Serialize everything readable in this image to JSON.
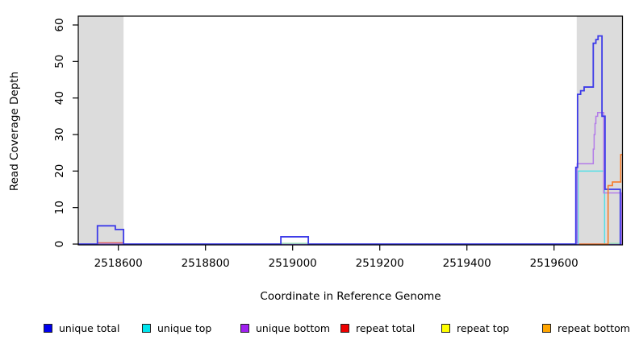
{
  "figure": {
    "background": "#ffffff"
  },
  "chart_data": {
    "type": "line",
    "subtype": "step-coverage-plot",
    "title": "",
    "xlabel": "Coordinate in Reference Genome",
    "ylabel": "Read Coverage Depth",
    "xlim": [
      2518508,
      2519757
    ],
    "ylim": [
      0,
      62.4
    ],
    "x_ticks": [
      2518600,
      2518800,
      2519000,
      2519200,
      2519400,
      2519600
    ],
    "y_ticks": [
      0,
      10,
      20,
      30,
      40,
      50,
      60
    ],
    "grid": false,
    "axis_color": "#000000",
    "shaded_regions": {
      "color": "#dcdcdc",
      "ranges": [
        [
          2518508,
          2518612
        ],
        [
          2519652,
          2519757
        ]
      ]
    },
    "series": [
      {
        "name": "zero-baseline",
        "legend": null,
        "color": "#7d63e6",
        "width": 1.4,
        "points": [
          [
            2518508,
            0
          ],
          [
            2519757,
            0
          ]
        ]
      },
      {
        "name": "repeat-total",
        "legend": "repeat total",
        "color": "#e06060",
        "width": 1.4,
        "points": [
          [
            2518552,
            0.35
          ],
          [
            2518612,
            0.35
          ]
        ]
      },
      {
        "name": "overlap-zero-mid",
        "legend": null,
        "color": "#9ce8b2",
        "width": 1.4,
        "points": [
          [
            2518973,
            0.2
          ],
          [
            2519036,
            0.2
          ]
        ]
      },
      {
        "name": "overlap-zero-right",
        "legend": null,
        "color": "#9ce8b2",
        "width": 1.4,
        "points": [
          [
            2519724,
            0.2
          ],
          [
            2519753,
            0.2
          ]
        ]
      },
      {
        "name": "unique-top",
        "legend": "unique top",
        "color": "#55dfe6",
        "width": 1.5,
        "points": [
          [
            2519655,
            0
          ],
          [
            2519655,
            20
          ],
          [
            2519716,
            20
          ],
          [
            2519716,
            0
          ]
        ]
      },
      {
        "name": "unique-bottom",
        "legend": "unique bottom",
        "color": "#b37be8",
        "width": 1.5,
        "points": [
          [
            2519653,
            0
          ],
          [
            2519653,
            22
          ],
          [
            2519690,
            26
          ],
          [
            2519692,
            30
          ],
          [
            2519694,
            33
          ],
          [
            2519696,
            35
          ],
          [
            2519700,
            36
          ],
          [
            2519714,
            14
          ],
          [
            2519755,
            0
          ],
          [
            2519757,
            0
          ]
        ]
      },
      {
        "name": "unique-total",
        "legend": "unique total",
        "color": "#3d3be8",
        "width": 1.8,
        "points": [
          [
            2518508,
            0
          ],
          [
            2518552,
            5
          ],
          [
            2518593,
            4
          ],
          [
            2518612,
            0
          ],
          [
            2518973,
            2
          ],
          [
            2519036,
            0
          ],
          [
            2519650,
            21
          ],
          [
            2519654,
            41
          ],
          [
            2519661,
            42
          ],
          [
            2519669,
            43
          ],
          [
            2519690,
            55
          ],
          [
            2519696,
            56
          ],
          [
            2519701,
            57
          ],
          [
            2519710,
            35
          ],
          [
            2519717,
            15
          ],
          [
            2519752,
            0
          ],
          [
            2519754,
            0
          ]
        ]
      },
      {
        "name": "repeat-bottom",
        "legend": "repeat bottom",
        "color": "#f57b2a",
        "width": 1.6,
        "points": [
          [
            2519658,
            0
          ],
          [
            2519724,
            16
          ],
          [
            2519734,
            17
          ],
          [
            2519753,
            24.5
          ],
          [
            2519757,
            24.5
          ]
        ]
      }
    ],
    "legend": {
      "position": "bottom",
      "items": [
        {
          "label": "unique total",
          "color": "#0000EE"
        },
        {
          "label": "unique top",
          "color": "#00E5EE"
        },
        {
          "label": "unique bottom",
          "color": "#A020F0"
        },
        {
          "label": "repeat total",
          "color": "#EE0000"
        },
        {
          "label": "repeat top",
          "color": "#FFFF00"
        },
        {
          "label": "repeat bottom",
          "color": "#FFA500"
        }
      ]
    }
  }
}
